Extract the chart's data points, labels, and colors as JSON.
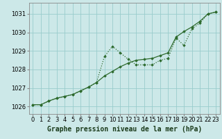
{
  "background_color": "#cce8e8",
  "grid_color": "#99cccc",
  "line_color": "#2d6a2d",
  "marker_color": "#2d6a2d",
  "title": "Graphe pression niveau de la mer (hPa)",
  "xlim": [
    -0.5,
    23.5
  ],
  "ylim": [
    1025.6,
    1031.6
  ],
  "yticks": [
    1026,
    1027,
    1028,
    1029,
    1030,
    1031
  ],
  "xticks": [
    0,
    1,
    2,
    3,
    4,
    5,
    6,
    7,
    8,
    9,
    10,
    11,
    12,
    13,
    14,
    15,
    16,
    17,
    18,
    19,
    20,
    21,
    22,
    23
  ],
  "series1_x": [
    0,
    1,
    2,
    3,
    4,
    5,
    6,
    7,
    8,
    9,
    10,
    11,
    12,
    13,
    14,
    15,
    16,
    17,
    18,
    19,
    20,
    21,
    22,
    23
  ],
  "series1_y": [
    1026.1,
    1026.1,
    1026.3,
    1026.45,
    1026.55,
    1026.65,
    1026.85,
    1027.05,
    1027.3,
    1027.65,
    1027.9,
    1028.15,
    1028.35,
    1028.5,
    1028.55,
    1028.6,
    1028.75,
    1028.9,
    1029.75,
    1030.05,
    1030.3,
    1030.6,
    1031.0,
    1031.1
  ],
  "series2_x": [
    0,
    1,
    2,
    3,
    4,
    5,
    6,
    7,
    8,
    9,
    10,
    11,
    12,
    13,
    14,
    15,
    16,
    17,
    18,
    19,
    20,
    21,
    22,
    23
  ],
  "series2_y": [
    1026.1,
    1026.1,
    1026.3,
    1026.45,
    1026.55,
    1026.65,
    1026.85,
    1027.05,
    1027.3,
    1028.7,
    1029.25,
    1028.9,
    1028.55,
    1028.25,
    1028.25,
    1028.25,
    1028.5,
    1028.6,
    1029.7,
    1029.3,
    1030.2,
    1030.5,
    1031.0,
    1031.1
  ],
  "title_fontsize": 7,
  "tick_fontsize": 6
}
